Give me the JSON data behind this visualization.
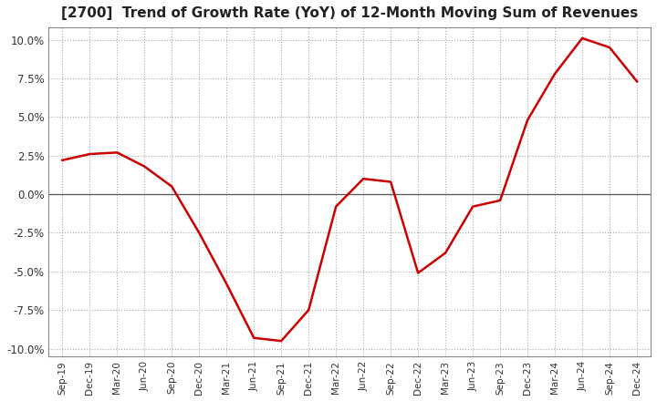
{
  "title": "[2700]  Trend of Growth Rate (YoY) of 12-Month Moving Sum of Revenues",
  "title_fontsize": 11,
  "line_color": "#cc0000",
  "background_color": "#ffffff",
  "grid_color": "#aaaaaa",
  "ylim": [
    -0.105,
    0.108
  ],
  "yticks": [
    -0.1,
    -0.075,
    -0.05,
    -0.025,
    0.0,
    0.025,
    0.05,
    0.075,
    0.1
  ],
  "x_labels": [
    "Sep-19",
    "Dec-19",
    "Mar-20",
    "Jun-20",
    "Sep-20",
    "Dec-20",
    "Mar-21",
    "Jun-21",
    "Sep-21",
    "Dec-21",
    "Mar-22",
    "Jun-22",
    "Sep-22",
    "Dec-22",
    "Mar-23",
    "Jun-23",
    "Sep-23",
    "Dec-23",
    "Mar-24",
    "Jun-24",
    "Sep-24",
    "Dec-24"
  ],
  "y_values": [
    0.022,
    0.026,
    0.027,
    0.018,
    0.005,
    -0.025,
    -0.058,
    -0.093,
    -0.095,
    -0.075,
    -0.008,
    0.01,
    0.008,
    -0.051,
    -0.038,
    -0.008,
    -0.004,
    0.048,
    0.078,
    0.101,
    0.095,
    0.073
  ]
}
